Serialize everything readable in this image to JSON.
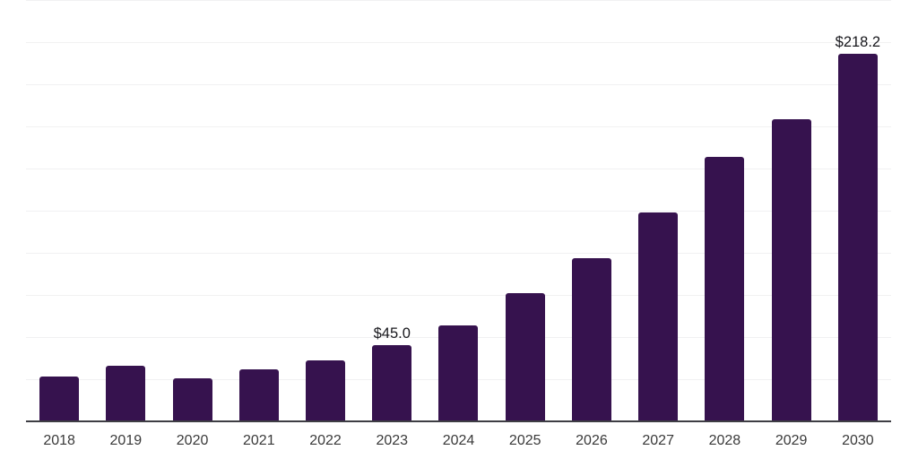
{
  "chart_data": {
    "type": "bar",
    "title": "",
    "xlabel": "",
    "ylabel": "",
    "categories": [
      "2018",
      "2019",
      "2020",
      "2021",
      "2022",
      "2023",
      "2024",
      "2025",
      "2026",
      "2027",
      "2028",
      "2029",
      "2030"
    ],
    "values": [
      26.6,
      32.8,
      25.5,
      30.7,
      36.2,
      45.0,
      56.8,
      75.9,
      97.0,
      124.1,
      156.8,
      179.1,
      218.2
    ],
    "data_labels": {
      "2023": "$45.0",
      "2030": "$218.2"
    },
    "ylim": [
      0,
      250
    ],
    "gridline_step": 25,
    "grid": true,
    "legend": false,
    "bar_color": "#36124E",
    "axis_line_color": "#3E3E44",
    "gridline_color": "#F1F1F2",
    "tick_label_color": "#3A3A3A",
    "data_label_color": "#17171C"
  }
}
